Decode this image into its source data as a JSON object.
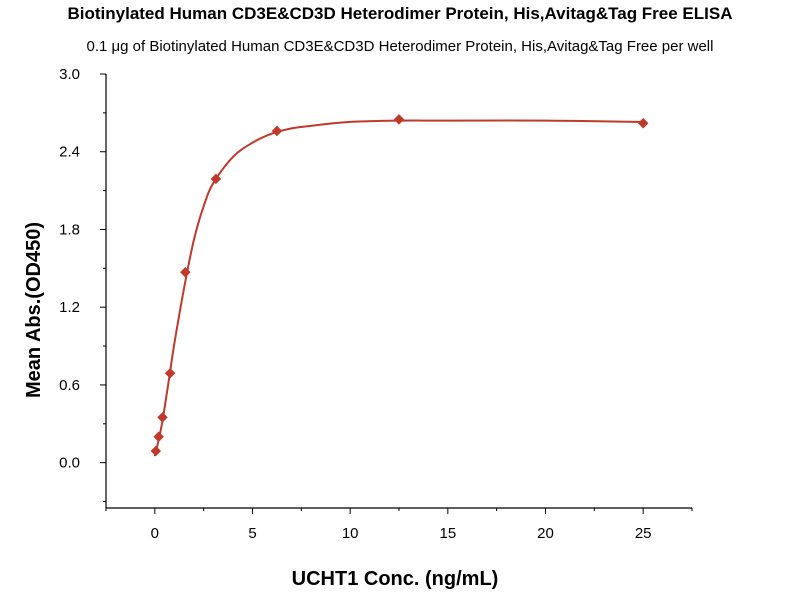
{
  "chart_data": {
    "type": "scatter",
    "title": "Biotinylated Human CD3E&CD3D Heterodimer Protein, His,Avitag&Tag Free ELISA",
    "subtitle": "0.1 μg of Biotinylated Human CD3E&CD3D Heterodimer Protein, His,Avitag&Tag Free per well",
    "xlabel": "UCHT1 Conc. (ng/mL)",
    "ylabel": "Mean Abs.(OD450)",
    "xlim": [
      -2.5,
      27.5
    ],
    "ylim": [
      -0.35,
      3.0
    ],
    "xticks": [
      0,
      5,
      10,
      15,
      20,
      25
    ],
    "xtick_labels": [
      "0",
      "5",
      "10",
      "15",
      "20",
      "25"
    ],
    "yticks": [
      0.0,
      0.6,
      1.2,
      1.8,
      2.4,
      3.0
    ],
    "ytick_labels": [
      "0.0",
      "0.6",
      "1.2",
      "1.8",
      "2.4",
      "3.0"
    ],
    "grid": false,
    "color": "#c0392b",
    "marker": "diamond",
    "series": [
      {
        "x": [
          0.049,
          0.195,
          0.391,
          0.781,
          1.563,
          3.125,
          6.25,
          12.5,
          25
        ],
        "y": [
          0.09,
          0.2,
          0.35,
          0.69,
          1.47,
          2.19,
          2.56,
          2.65,
          2.62
        ]
      }
    ],
    "fit_curve": {
      "x": [
        0,
        0.2,
        0.4,
        0.7,
        1.0,
        1.5,
        2.0,
        2.5,
        3.0,
        4.0,
        5.0,
        6.0,
        7.0,
        8.0,
        10.0,
        12.5,
        15.0,
        20.0,
        25.0
      ],
      "y": [
        0.05,
        0.18,
        0.33,
        0.62,
        0.92,
        1.35,
        1.72,
        1.98,
        2.16,
        2.36,
        2.47,
        2.54,
        2.58,
        2.6,
        2.63,
        2.64,
        2.64,
        2.64,
        2.63
      ]
    }
  }
}
